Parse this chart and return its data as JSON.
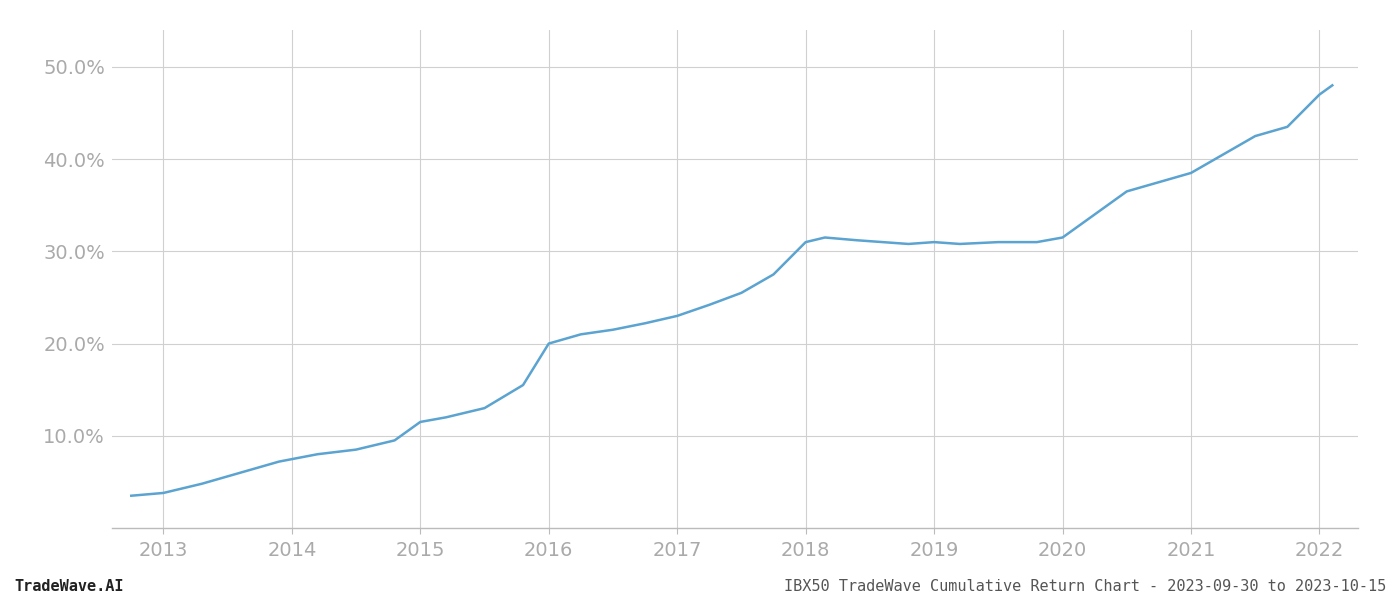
{
  "x_years": [
    2012.75,
    2013.0,
    2013.3,
    2013.6,
    2013.9,
    2014.2,
    2014.5,
    2014.8,
    2015.0,
    2015.2,
    2015.5,
    2015.8,
    2016.0,
    2016.25,
    2016.5,
    2016.75,
    2017.0,
    2017.25,
    2017.5,
    2017.75,
    2018.0,
    2018.15,
    2018.4,
    2018.6,
    2018.8,
    2019.0,
    2019.2,
    2019.5,
    2019.8,
    2020.0,
    2020.25,
    2020.5,
    2020.75,
    2021.0,
    2021.25,
    2021.5,
    2021.75,
    2022.0,
    2022.1
  ],
  "y_values": [
    3.5,
    3.8,
    4.8,
    6.0,
    7.2,
    8.0,
    8.5,
    9.5,
    11.5,
    12.0,
    13.0,
    15.5,
    20.0,
    21.0,
    21.5,
    22.2,
    23.0,
    24.2,
    25.5,
    27.5,
    31.0,
    31.5,
    31.2,
    31.0,
    30.8,
    31.0,
    30.8,
    31.0,
    31.0,
    31.5,
    34.0,
    36.5,
    37.5,
    38.5,
    40.5,
    42.5,
    43.5,
    47.0,
    48.0
  ],
  "line_color": "#5ba3d0",
  "line_width": 1.8,
  "yticks": [
    10.0,
    20.0,
    30.0,
    40.0,
    50.0
  ],
  "xticks": [
    2013,
    2014,
    2015,
    2016,
    2017,
    2018,
    2019,
    2020,
    2021,
    2022
  ],
  "ylim": [
    0,
    54
  ],
  "xlim": [
    2012.6,
    2022.3
  ],
  "grid_color": "#d0d0d0",
  "background_color": "#ffffff",
  "footer_left": "TradeWave.AI",
  "footer_right": "IBX50 TradeWave Cumulative Return Chart - 2023-09-30 to 2023-10-15",
  "tick_label_color": "#aaaaaa",
  "footer_font_size": 11,
  "tick_font_size": 14
}
